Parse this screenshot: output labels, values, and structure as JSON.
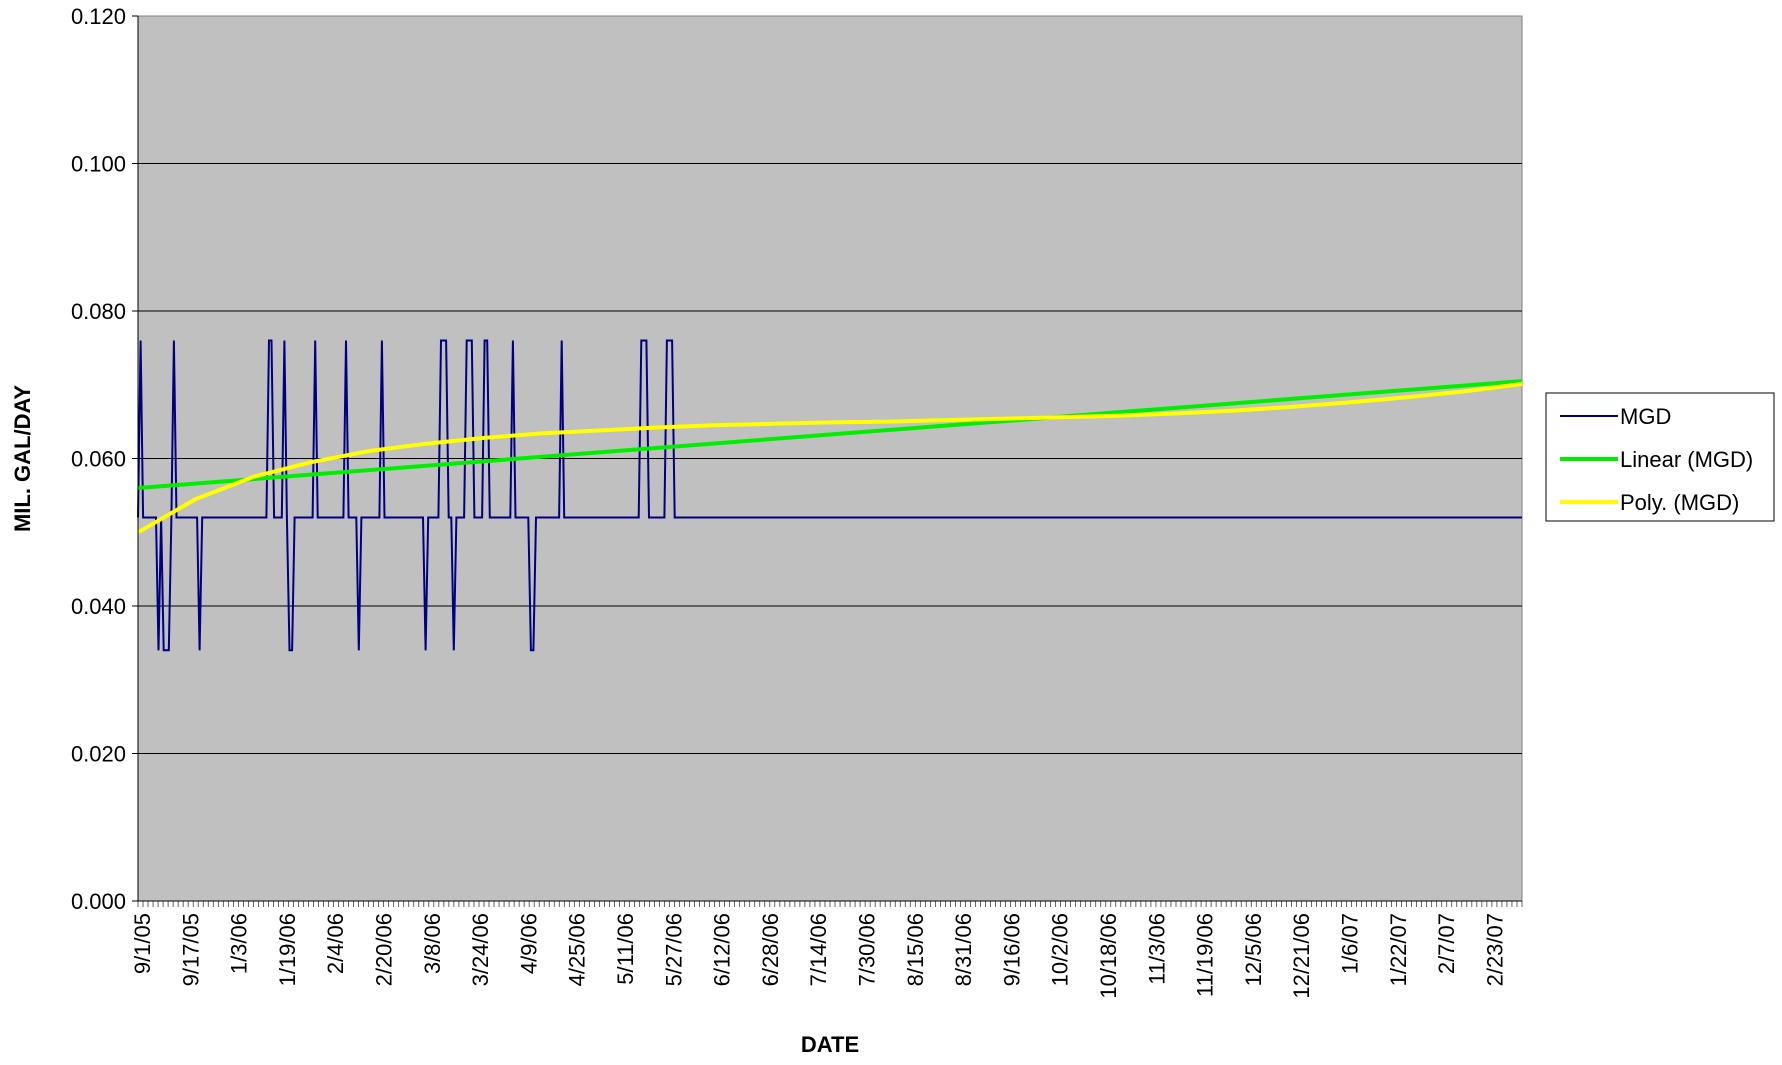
{
  "chart_data": {
    "type": "line",
    "title": "",
    "xlabel": "DATE",
    "ylabel": "MIL. GAL/DAY",
    "ylim": [
      0,
      0.12
    ],
    "y_ticks": [
      "0.000",
      "0.020",
      "0.040",
      "0.060",
      "0.080",
      "0.100",
      "0.120"
    ],
    "x_range": [
      "9/1/05",
      "3/6/07"
    ],
    "x_tick_labels": [
      "9/1/05",
      "9/17/05",
      "1/3/06",
      "1/19/06",
      "2/4/06",
      "2/20/06",
      "3/8/06",
      "3/24/06",
      "4/9/06",
      "4/25/06",
      "5/11/06",
      "5/27/06",
      "6/12/06",
      "6/28/06",
      "7/14/06",
      "7/30/06",
      "8/15/06",
      "8/31/06",
      "9/16/06",
      "10/2/06",
      "10/18/06",
      "11/3/06",
      "11/19/06",
      "12/5/06",
      "12/21/06",
      "1/6/07",
      "1/22/07",
      "2/7/07",
      "2/23/07"
    ],
    "grid": "horizontal",
    "legend_position": "right",
    "plot_background": "#C0C0C0",
    "series": [
      {
        "name": "MGD",
        "color": "#000080",
        "values": [
          0.052,
          0.076,
          0.052,
          0.052,
          0.052,
          0.052,
          0.052,
          0.052,
          0.034,
          0.052,
          0.034,
          0.034,
          0.034,
          0.052,
          0.076,
          0.052,
          0.052,
          0.052,
          0.052,
          0.052,
          0.052,
          0.052,
          0.052,
          0.052,
          0.034,
          0.052,
          0.052,
          0.052,
          0.052,
          0.052,
          0.052,
          0.052,
          0.052,
          0.052,
          0.052,
          0.052,
          0.052,
          0.052,
          0.052,
          0.052,
          0.052,
          0.052,
          0.052,
          0.052,
          0.052,
          0.052,
          0.052,
          0.052,
          0.052,
          0.052,
          0.052,
          0.076,
          0.076,
          0.052,
          0.052,
          0.052,
          0.052,
          0.076,
          0.052,
          0.034,
          0.034,
          0.052,
          0.052,
          0.052,
          0.052,
          0.052,
          0.052,
          0.052,
          0.052,
          0.076,
          0.052,
          0.052,
          0.052,
          0.052,
          0.052,
          0.052,
          0.052,
          0.052,
          0.052,
          0.052,
          0.052,
          0.076,
          0.052,
          0.052,
          0.052,
          0.052,
          0.034,
          0.052,
          0.052,
          0.052,
          0.052,
          0.052,
          0.052,
          0.052,
          0.052,
          0.076,
          0.052,
          0.052,
          0.052,
          0.052,
          0.052,
          0.052,
          0.052,
          0.052,
          0.052,
          0.052,
          0.052,
          0.052,
          0.052,
          0.052,
          0.052,
          0.052,
          0.034,
          0.052,
          0.052,
          0.052,
          0.052,
          0.052,
          0.076,
          0.076,
          0.076,
          0.052,
          0.052,
          0.034,
          0.052,
          0.052,
          0.052,
          0.052,
          0.076,
          0.076,
          0.076,
          0.052,
          0.052,
          0.052,
          0.052,
          0.076,
          0.076,
          0.052,
          0.052,
          0.052,
          0.052,
          0.052,
          0.052,
          0.052,
          0.052,
          0.052,
          0.076,
          0.052,
          0.052,
          0.052,
          0.052,
          0.052,
          0.052,
          0.034,
          0.034,
          0.052,
          0.052,
          0.052,
          0.052,
          0.052,
          0.052,
          0.052,
          0.052,
          0.052,
          0.052,
          0.076,
          0.052,
          0.052,
          0.052,
          0.052,
          0.052,
          0.052,
          0.052,
          0.052,
          0.052,
          0.052,
          0.052,
          0.052,
          0.052,
          0.052,
          0.052,
          0.052,
          0.052,
          0.052,
          0.052,
          0.052,
          0.052,
          0.052,
          0.052,
          0.052,
          0.052,
          0.052,
          0.052,
          0.052,
          0.052,
          0.052,
          0.076,
          0.076,
          0.076,
          0.052,
          0.052,
          0.052,
          0.052,
          0.052,
          0.052,
          0.052,
          0.076,
          0.076,
          0.076,
          0.052,
          0.052,
          0.052,
          0.052,
          0.052,
          0.052,
          0.052,
          0.052,
          0.052,
          0.052,
          0.052,
          0.052,
          0.052,
          0.052,
          0.052,
          0.052,
          0.052,
          0.052,
          0.052,
          0.052,
          0.052,
          0.052,
          0.052,
          0.052,
          0.052,
          0.052,
          0.052,
          0.052,
          0.052,
          0.052,
          0.052,
          0.052,
          0.052,
          0.052,
          0.052,
          0.052,
          0.052,
          0.052,
          0.052,
          0.052,
          0.052,
          0.052,
          0.052,
          0.052,
          0.052,
          0.052,
          0.052,
          0.052,
          0.052,
          0.052,
          0.052,
          0.052,
          0.052,
          0.052,
          0.052,
          0.052,
          0.052,
          0.052,
          0.052,
          0.052,
          0.052,
          0.052,
          0.052,
          0.052,
          0.052,
          0.052,
          0.052,
          0.052,
          0.052,
          0.052,
          0.052,
          0.052,
          0.052,
          0.052,
          0.052,
          0.052,
          0.052,
          0.052,
          0.052,
          0.052,
          0.052,
          0.052,
          0.052,
          0.052,
          0.052,
          0.052,
          0.052,
          0.052,
          0.052,
          0.052,
          0.052,
          0.052,
          0.052,
          0.052,
          0.052,
          0.052,
          0.052,
          0.052,
          0.052,
          0.052,
          0.052,
          0.052,
          0.052,
          0.052,
          0.052,
          0.052,
          0.052,
          0.052,
          0.052,
          0.052,
          0.052,
          0.052,
          0.052,
          0.052,
          0.052,
          0.052,
          0.052,
          0.052,
          0.052,
          0.052,
          0.052,
          0.052,
          0.052,
          0.052,
          0.052,
          0.052,
          0.052,
          0.052,
          0.052,
          0.052,
          0.052,
          0.052,
          0.052,
          0.052,
          0.052,
          0.052,
          0.052,
          0.052,
          0.052,
          0.052,
          0.052,
          0.052,
          0.052,
          0.052,
          0.052,
          0.052,
          0.052,
          0.052,
          0.052,
          0.052,
          0.052,
          0.052,
          0.052,
          0.052,
          0.052,
          0.052,
          0.052,
          0.052,
          0.052,
          0.052,
          0.052,
          0.052,
          0.052,
          0.052,
          0.052,
          0.052,
          0.052,
          0.052,
          0.052,
          0.052,
          0.052,
          0.052,
          0.052,
          0.052,
          0.052,
          0.052,
          0.052,
          0.052,
          0.052,
          0.052,
          0.052,
          0.052,
          0.052,
          0.052,
          0.052,
          0.052,
          0.052,
          0.052,
          0.052,
          0.052,
          0.052,
          0.052,
          0.052,
          0.052,
          0.052,
          0.052,
          0.052,
          0.052,
          0.052,
          0.052,
          0.052,
          0.052,
          0.052,
          0.052,
          0.052,
          0.052,
          0.052,
          0.052,
          0.052,
          0.052,
          0.052,
          0.052,
          0.052,
          0.052,
          0.052,
          0.052,
          0.052,
          0.052,
          0.052,
          0.052,
          0.052,
          0.052,
          0.052,
          0.052,
          0.052,
          0.052,
          0.052,
          0.052,
          0.052,
          0.052,
          0.052,
          0.052,
          0.052,
          0.052,
          0.052,
          0.052,
          0.052,
          0.052,
          0.052,
          0.052,
          0.052,
          0.052,
          0.052,
          0.052,
          0.052,
          0.052,
          0.052,
          0.052,
          0.052,
          0.052,
          0.052,
          0.052,
          0.052,
          0.052,
          0.052,
          0.052,
          0.052,
          0.052,
          0.052,
          0.052,
          0.052,
          0.052,
          0.052,
          0.052,
          0.052,
          0.052,
          0.052,
          0.052,
          0.052,
          0.052,
          0.052,
          0.052,
          0.052,
          0.052,
          0.052,
          0.052,
          0.052,
          0.052,
          0.052,
          0.052,
          0.052,
          0.052,
          0.052,
          0.052,
          0.052,
          0.052,
          0.052,
          0.052,
          0.052,
          0.052,
          0.052,
          0.052,
          0.052,
          0.052,
          0.052,
          0.052,
          0.052,
          0.052,
          0.052,
          0.052,
          0.052,
          0.052,
          0.052,
          0.052,
          0.052,
          0.052,
          0.052,
          0.052,
          0.052,
          0.052,
          0.052,
          0.052,
          0.052,
          0.052,
          0.052,
          0.052,
          0.052,
          0.052,
          0.052,
          0.052,
          0.052,
          0.052,
          0.052,
          0.052,
          0.052,
          0.052,
          0.052,
          0.052,
          0.052,
          0.052,
          0.052
        ]
      },
      {
        "name": "Linear (MGD)",
        "color": "#00EE00",
        "values": [
          0.056,
          0.0705
        ]
      },
      {
        "name": "Poly. (MGD)",
        "color": "#FFFF00",
        "values": [
          0.05,
          0.0545,
          0.0575,
          0.0595,
          0.061,
          0.062,
          0.0628,
          0.0634,
          0.0638,
          0.0642,
          0.0645,
          0.0647,
          0.0649,
          0.065,
          0.0652,
          0.0654,
          0.0656,
          0.0658,
          0.0661,
          0.0665,
          0.067,
          0.0676,
          0.0683,
          0.0691,
          0.0701
        ]
      }
    ]
  }
}
